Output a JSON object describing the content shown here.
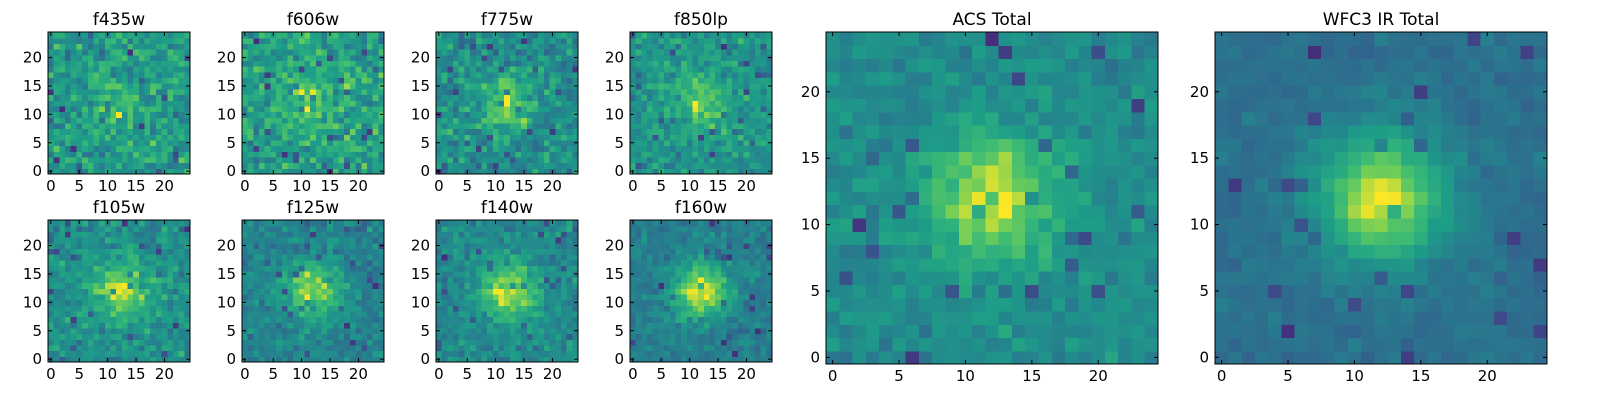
{
  "figure": {
    "colormap": "viridis",
    "colors": {
      "low": "#440154",
      "mid": "#21918c",
      "high": "#fde725",
      "frame": "#000000",
      "background": "#ffffff"
    }
  },
  "chart_data": [
    {
      "type": "heatmap",
      "title": "f435w",
      "grid_size": 24,
      "x_ticks": [
        0,
        5,
        10,
        15,
        20
      ],
      "y_ticks": [
        0,
        5,
        10,
        15,
        20
      ],
      "xlim": [
        0,
        24
      ],
      "ylim": [
        0,
        24
      ],
      "hot_spot_center": [
        12,
        12
      ],
      "hot_spot_strength": 0.15,
      "noise_level": 1.0,
      "seed": 11,
      "grid": false
    },
    {
      "type": "heatmap",
      "title": "f606w",
      "grid_size": 24,
      "x_ticks": [
        0,
        5,
        10,
        15,
        20
      ],
      "y_ticks": [
        0,
        5,
        10,
        15,
        20
      ],
      "xlim": [
        0,
        24
      ],
      "ylim": [
        0,
        24
      ],
      "hot_spot_center": [
        12,
        12
      ],
      "hot_spot_strength": 0.2,
      "noise_level": 1.0,
      "seed": 23,
      "grid": false
    },
    {
      "type": "heatmap",
      "title": "f775w",
      "grid_size": 24,
      "x_ticks": [
        0,
        5,
        10,
        15,
        20
      ],
      "y_ticks": [
        0,
        5,
        10,
        15,
        20
      ],
      "xlim": [
        0,
        24
      ],
      "ylim": [
        0,
        24
      ],
      "hot_spot_center": [
        12,
        12
      ],
      "hot_spot_strength": 0.35,
      "noise_level": 1.0,
      "seed": 37,
      "grid": false
    },
    {
      "type": "heatmap",
      "title": "f850lp",
      "grid_size": 24,
      "x_ticks": [
        0,
        5,
        10,
        15,
        20
      ],
      "y_ticks": [
        0,
        5,
        10,
        15,
        20
      ],
      "xlim": [
        0,
        24
      ],
      "ylim": [
        0,
        24
      ],
      "hot_spot_center": [
        12,
        12
      ],
      "hot_spot_strength": 0.35,
      "noise_level": 1.0,
      "seed": 41,
      "grid": false
    },
    {
      "type": "heatmap",
      "title": "f105w",
      "grid_size": 24,
      "x_ticks": [
        0,
        5,
        10,
        15,
        20
      ],
      "y_ticks": [
        0,
        5,
        10,
        15,
        20
      ],
      "xlim": [
        0,
        24
      ],
      "ylim": [
        0,
        24
      ],
      "hot_spot_center": [
        12,
        12
      ],
      "hot_spot_strength": 0.45,
      "noise_level": 0.9,
      "seed": 53,
      "grid": false
    },
    {
      "type": "heatmap",
      "title": "f125w",
      "grid_size": 24,
      "x_ticks": [
        0,
        5,
        10,
        15,
        20
      ],
      "y_ticks": [
        0,
        5,
        10,
        15,
        20
      ],
      "xlim": [
        0,
        24
      ],
      "ylim": [
        0,
        24
      ],
      "hot_spot_center": [
        12,
        12
      ],
      "hot_spot_strength": 0.6,
      "noise_level": 0.9,
      "seed": 61,
      "grid": false
    },
    {
      "type": "heatmap",
      "title": "f140w",
      "grid_size": 24,
      "x_ticks": [
        0,
        5,
        10,
        15,
        20
      ],
      "y_ticks": [
        0,
        5,
        10,
        15,
        20
      ],
      "xlim": [
        0,
        24
      ],
      "ylim": [
        0,
        24
      ],
      "hot_spot_center": [
        12,
        12
      ],
      "hot_spot_strength": 0.6,
      "noise_level": 0.9,
      "seed": 73,
      "grid": false
    },
    {
      "type": "heatmap",
      "title": "f160w",
      "grid_size": 24,
      "x_ticks": [
        0,
        5,
        10,
        15,
        20
      ],
      "y_ticks": [
        0,
        5,
        10,
        15,
        20
      ],
      "xlim": [
        0,
        24
      ],
      "ylim": [
        0,
        24
      ],
      "hot_spot_center": [
        12,
        12
      ],
      "hot_spot_strength": 0.8,
      "noise_level": 0.8,
      "seed": 89,
      "grid": false
    },
    {
      "type": "heatmap",
      "title": "ACS Total",
      "grid_size": 24,
      "x_ticks": [
        0,
        5,
        10,
        15,
        20
      ],
      "y_ticks": [
        0,
        5,
        10,
        15,
        20
      ],
      "xlim": [
        0,
        24
      ],
      "ylim": [
        0,
        24
      ],
      "hot_spot_center": [
        12,
        12
      ],
      "hot_spot_strength": 0.6,
      "noise_level": 0.7,
      "seed": 97,
      "grid": false
    },
    {
      "type": "heatmap",
      "title": "WFC3 IR Total",
      "grid_size": 24,
      "x_ticks": [
        0,
        5,
        10,
        15,
        20
      ],
      "y_ticks": [
        0,
        5,
        10,
        15,
        20
      ],
      "xlim": [
        0,
        24
      ],
      "ylim": [
        0,
        24
      ],
      "hot_spot_center": [
        12,
        12
      ],
      "hot_spot_strength": 1.0,
      "noise_level": 0.5,
      "seed": 131,
      "grid": false
    }
  ]
}
